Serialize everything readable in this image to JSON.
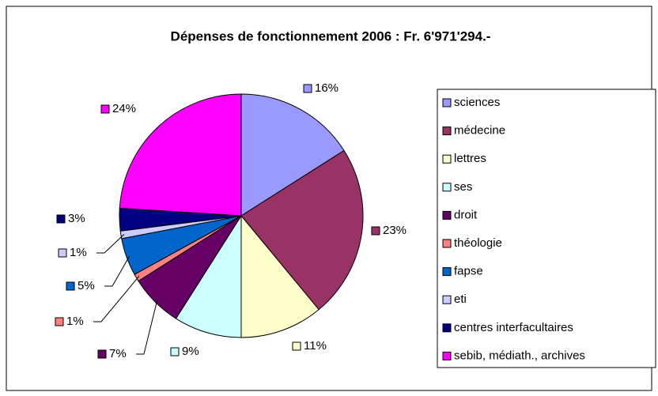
{
  "chart_data": {
    "type": "pie",
    "title": "Dépenses de fonctionnement  2006 : Fr. 6'971'294.-",
    "categories": [
      "sciences",
      "médecine",
      "lettres",
      "ses",
      "droit",
      "théologie",
      "fapse",
      "eti",
      "centres interfacultaires",
      "sebib, médiath., archives"
    ],
    "values": [
      16,
      23,
      11,
      9,
      7,
      1,
      5,
      1,
      3,
      24
    ],
    "value_labels": [
      "16%",
      "23%",
      "11%",
      "9%",
      "7%",
      "1%",
      "5%",
      "1%",
      "3%",
      "24%"
    ],
    "colors": [
      "#9999ff",
      "#993366",
      "#ffffcc",
      "#ccffff",
      "#660066",
      "#ff8080",
      "#0066cc",
      "#ccccff",
      "#000080",
      "#ff00ff"
    ],
    "legend": "right"
  }
}
